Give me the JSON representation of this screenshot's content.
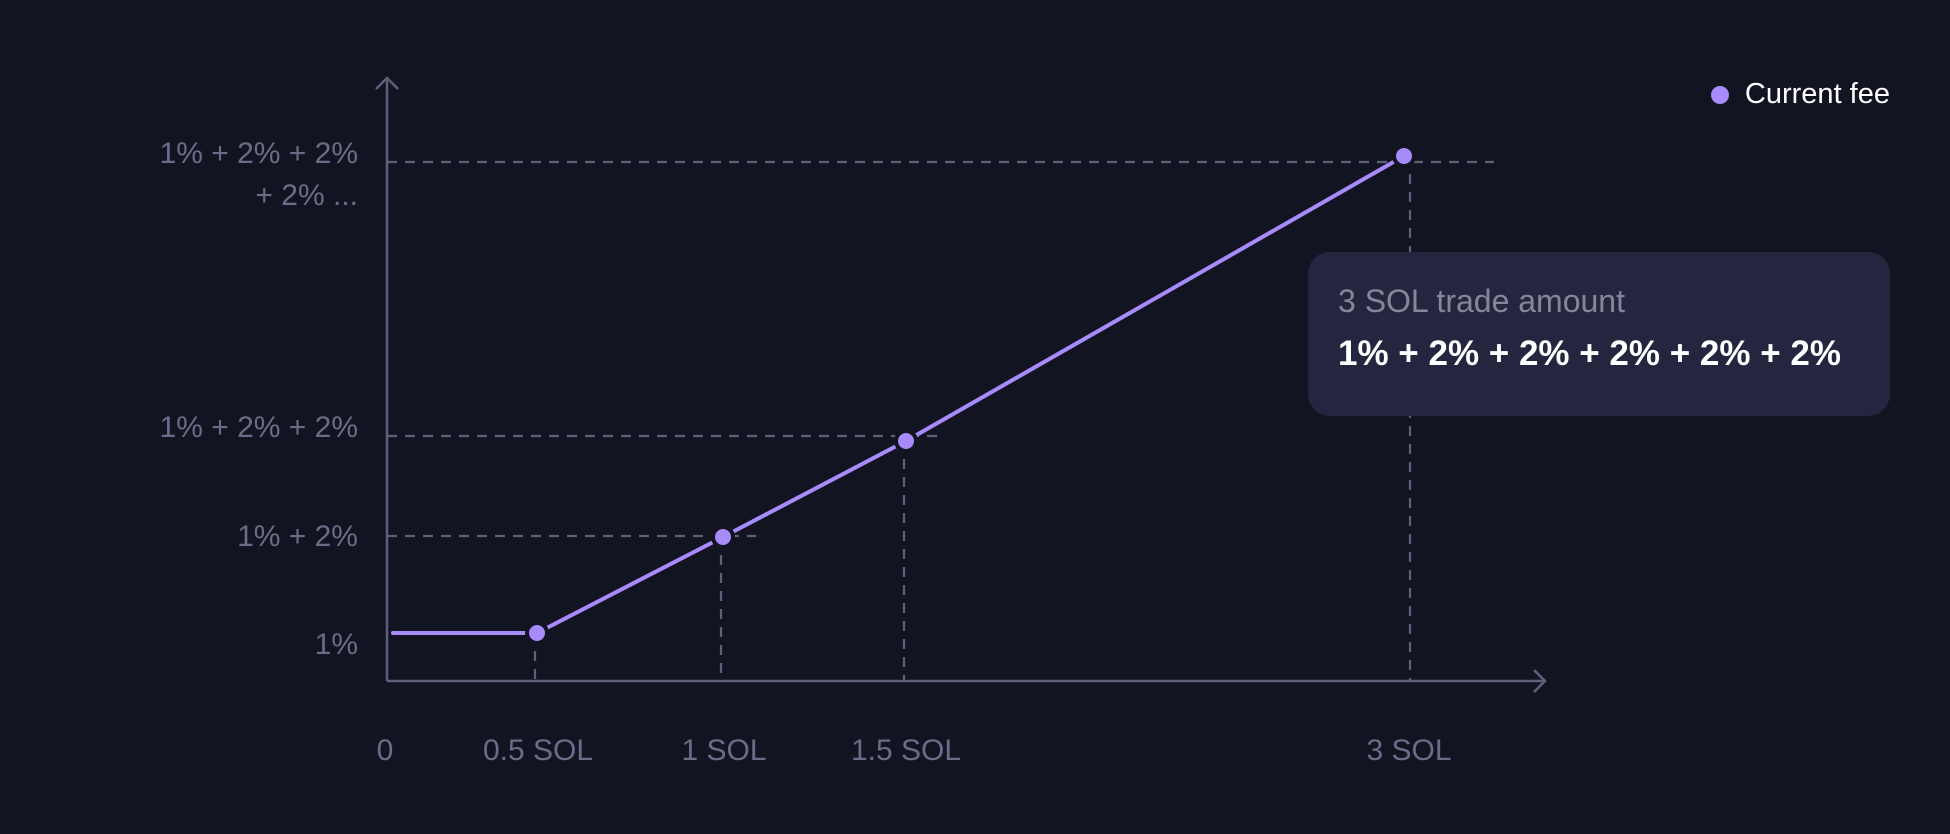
{
  "chart_data": {
    "type": "line",
    "x": [
      0,
      0.5,
      1,
      1.5,
      3
    ],
    "x_tick_labels": [
      "0",
      "0.5 SOL",
      "1 SOL",
      "1.5 SOL",
      "3 SOL"
    ],
    "y_tick_labels": [
      "1%",
      "1% + 2%",
      "1% + 2% + 2%",
      "1% + 2% + 2%\n+ 2% ..."
    ],
    "series": [
      {
        "name": "Current fee",
        "points": [
          {
            "x": 0,
            "y": "1%",
            "marker": false
          },
          {
            "x": 0.5,
            "y": "1%",
            "marker": true
          },
          {
            "x": 1,
            "y": "1% + 2%",
            "marker": true
          },
          {
            "x": 1.5,
            "y": "1% + 2% + 2%",
            "marker": true
          },
          {
            "x": 3,
            "y": "1% + 2% + 2%\n+ 2% ...",
            "marker": true
          }
        ]
      }
    ],
    "legend": {
      "label": "Current fee",
      "position": "top-right"
    },
    "tooltip": {
      "title": "3 SOL trade amount",
      "value": "1% + 2% + 2% + 2% + 2% + 2%"
    },
    "grid": false,
    "colors": {
      "series": "#a78bfa",
      "background": "#131422",
      "axis": "#5e5f7a",
      "tick_text": "#6b6c88",
      "tooltip_bg": "#242640"
    }
  }
}
